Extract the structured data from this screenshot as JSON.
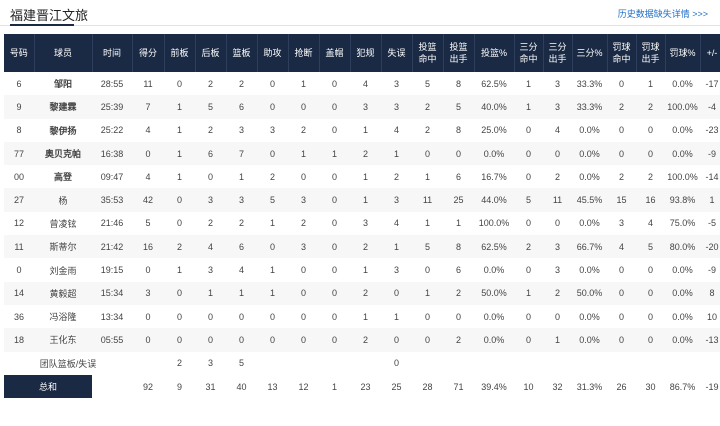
{
  "header": {
    "team_title": "福建晋江文旅",
    "history_link": "历史数据缺失详情 >>>"
  },
  "columns": [
    "号码",
    "球员",
    "时间",
    "得分",
    "前板",
    "后板",
    "篮板",
    "助攻",
    "抢断",
    "盖帽",
    "犯规",
    "失误",
    "投篮命中",
    "投篮出手",
    "投篮%",
    "三分命中",
    "三分出手",
    "三分%",
    "罚球命中",
    "罚球出手",
    "罚球%",
    "+/-"
  ],
  "rows": [
    {
      "bold": true,
      "cells": [
        "6",
        "邹阳",
        "28:55",
        "11",
        "0",
        "2",
        "2",
        "0",
        "1",
        "0",
        "4",
        "3",
        "5",
        "8",
        "62.5%",
        "1",
        "3",
        "33.3%",
        "0",
        "1",
        "0.0%",
        "-17"
      ]
    },
    {
      "bold": true,
      "cells": [
        "9",
        "黎建霖",
        "25:39",
        "7",
        "1",
        "5",
        "6",
        "0",
        "0",
        "0",
        "3",
        "3",
        "2",
        "5",
        "40.0%",
        "1",
        "3",
        "33.3%",
        "2",
        "2",
        "100.0%",
        "-4"
      ]
    },
    {
      "bold": true,
      "cells": [
        "8",
        "黎伊扬",
        "25:22",
        "4",
        "1",
        "2",
        "3",
        "3",
        "2",
        "0",
        "1",
        "4",
        "2",
        "8",
        "25.0%",
        "0",
        "4",
        "0.0%",
        "0",
        "0",
        "0.0%",
        "-23"
      ]
    },
    {
      "bold": true,
      "cells": [
        "77",
        "奥贝克帕",
        "16:38",
        "0",
        "1",
        "6",
        "7",
        "0",
        "1",
        "1",
        "2",
        "1",
        "0",
        "0",
        "0.0%",
        "0",
        "0",
        "0.0%",
        "0",
        "0",
        "0.0%",
        "-9"
      ]
    },
    {
      "bold": true,
      "cells": [
        "00",
        "高登",
        "09:47",
        "4",
        "1",
        "0",
        "1",
        "2",
        "0",
        "0",
        "1",
        "2",
        "1",
        "6",
        "16.7%",
        "0",
        "2",
        "0.0%",
        "2",
        "2",
        "100.0%",
        "-14"
      ]
    },
    {
      "bold": false,
      "cells": [
        "27",
        "杨",
        "35:53",
        "42",
        "0",
        "3",
        "3",
        "5",
        "3",
        "0",
        "1",
        "3",
        "11",
        "25",
        "44.0%",
        "5",
        "11",
        "45.5%",
        "15",
        "16",
        "93.8%",
        "1"
      ]
    },
    {
      "bold": false,
      "cells": [
        "12",
        "曾凌铉",
        "21:46",
        "5",
        "0",
        "2",
        "2",
        "1",
        "2",
        "0",
        "3",
        "4",
        "1",
        "1",
        "100.0%",
        "0",
        "0",
        "0.0%",
        "3",
        "4",
        "75.0%",
        "-5"
      ]
    },
    {
      "bold": false,
      "cells": [
        "11",
        "斯蒂尔",
        "21:42",
        "16",
        "2",
        "4",
        "6",
        "0",
        "3",
        "0",
        "2",
        "1",
        "5",
        "8",
        "62.5%",
        "2",
        "3",
        "66.7%",
        "4",
        "5",
        "80.0%",
        "-20"
      ]
    },
    {
      "bold": false,
      "cells": [
        "0",
        "刘金雨",
        "19:15",
        "0",
        "1",
        "3",
        "4",
        "1",
        "0",
        "0",
        "1",
        "3",
        "0",
        "6",
        "0.0%",
        "0",
        "3",
        "0.0%",
        "0",
        "0",
        "0.0%",
        "-9"
      ]
    },
    {
      "bold": false,
      "cells": [
        "14",
        "黄毅超",
        "15:34",
        "3",
        "0",
        "1",
        "1",
        "1",
        "0",
        "0",
        "2",
        "0",
        "1",
        "2",
        "50.0%",
        "1",
        "2",
        "50.0%",
        "0",
        "0",
        "0.0%",
        "8"
      ]
    },
    {
      "bold": false,
      "cells": [
        "36",
        "冯浴隆",
        "13:34",
        "0",
        "0",
        "0",
        "0",
        "0",
        "0",
        "0",
        "1",
        "1",
        "0",
        "0",
        "0.0%",
        "0",
        "0",
        "0.0%",
        "0",
        "0",
        "0.0%",
        "10"
      ]
    },
    {
      "bold": false,
      "cells": [
        "18",
        "王化东",
        "05:55",
        "0",
        "0",
        "0",
        "0",
        "0",
        "0",
        "0",
        "2",
        "0",
        "0",
        "2",
        "0.0%",
        "0",
        "1",
        "0.0%",
        "0",
        "0",
        "0.0%",
        "-13"
      ]
    }
  ],
  "team_row": {
    "label": "团队篮板/失误",
    "off_reb": "2",
    "def_reb": "3",
    "reb": "5",
    "tov": "0"
  },
  "totals": {
    "label": "总和",
    "cells": [
      "92",
      "9",
      "31",
      "40",
      "13",
      "12",
      "1",
      "23",
      "25",
      "28",
      "71",
      "39.4%",
      "10",
      "32",
      "31.3%",
      "26",
      "30",
      "86.7%",
      "-19"
    ]
  },
  "colors": {
    "header_bg": "#1a2a44",
    "link": "#1e6fc8"
  }
}
